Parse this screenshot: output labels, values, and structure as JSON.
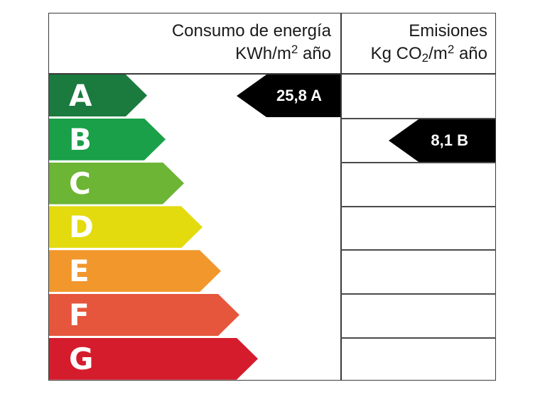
{
  "header": {
    "energy_title": "Consumo de energía",
    "energy_unit_prefix": "KWh/m",
    "energy_unit_exp": "2",
    "energy_unit_suffix": " año",
    "emission_title": "Emisiones",
    "emission_unit_prefix": "Kg CO",
    "emission_unit_sub": "2",
    "emission_unit_mid": "/m",
    "emission_unit_exp": "2",
    "emission_unit_suffix": " año"
  },
  "bands": [
    {
      "letter": "A",
      "color": "#1b7a3e"
    },
    {
      "letter": "B",
      "color": "#19a048"
    },
    {
      "letter": "C",
      "color": "#6cb535"
    },
    {
      "letter": "D",
      "color": "#e3db0e"
    },
    {
      "letter": "E",
      "color": "#f1972c"
    },
    {
      "letter": "F",
      "color": "#e6563c"
    },
    {
      "letter": "G",
      "color": "#d51c2c"
    }
  ],
  "rating": {
    "energy_label": "25,8 A",
    "emission_label": "8,1 B"
  }
}
